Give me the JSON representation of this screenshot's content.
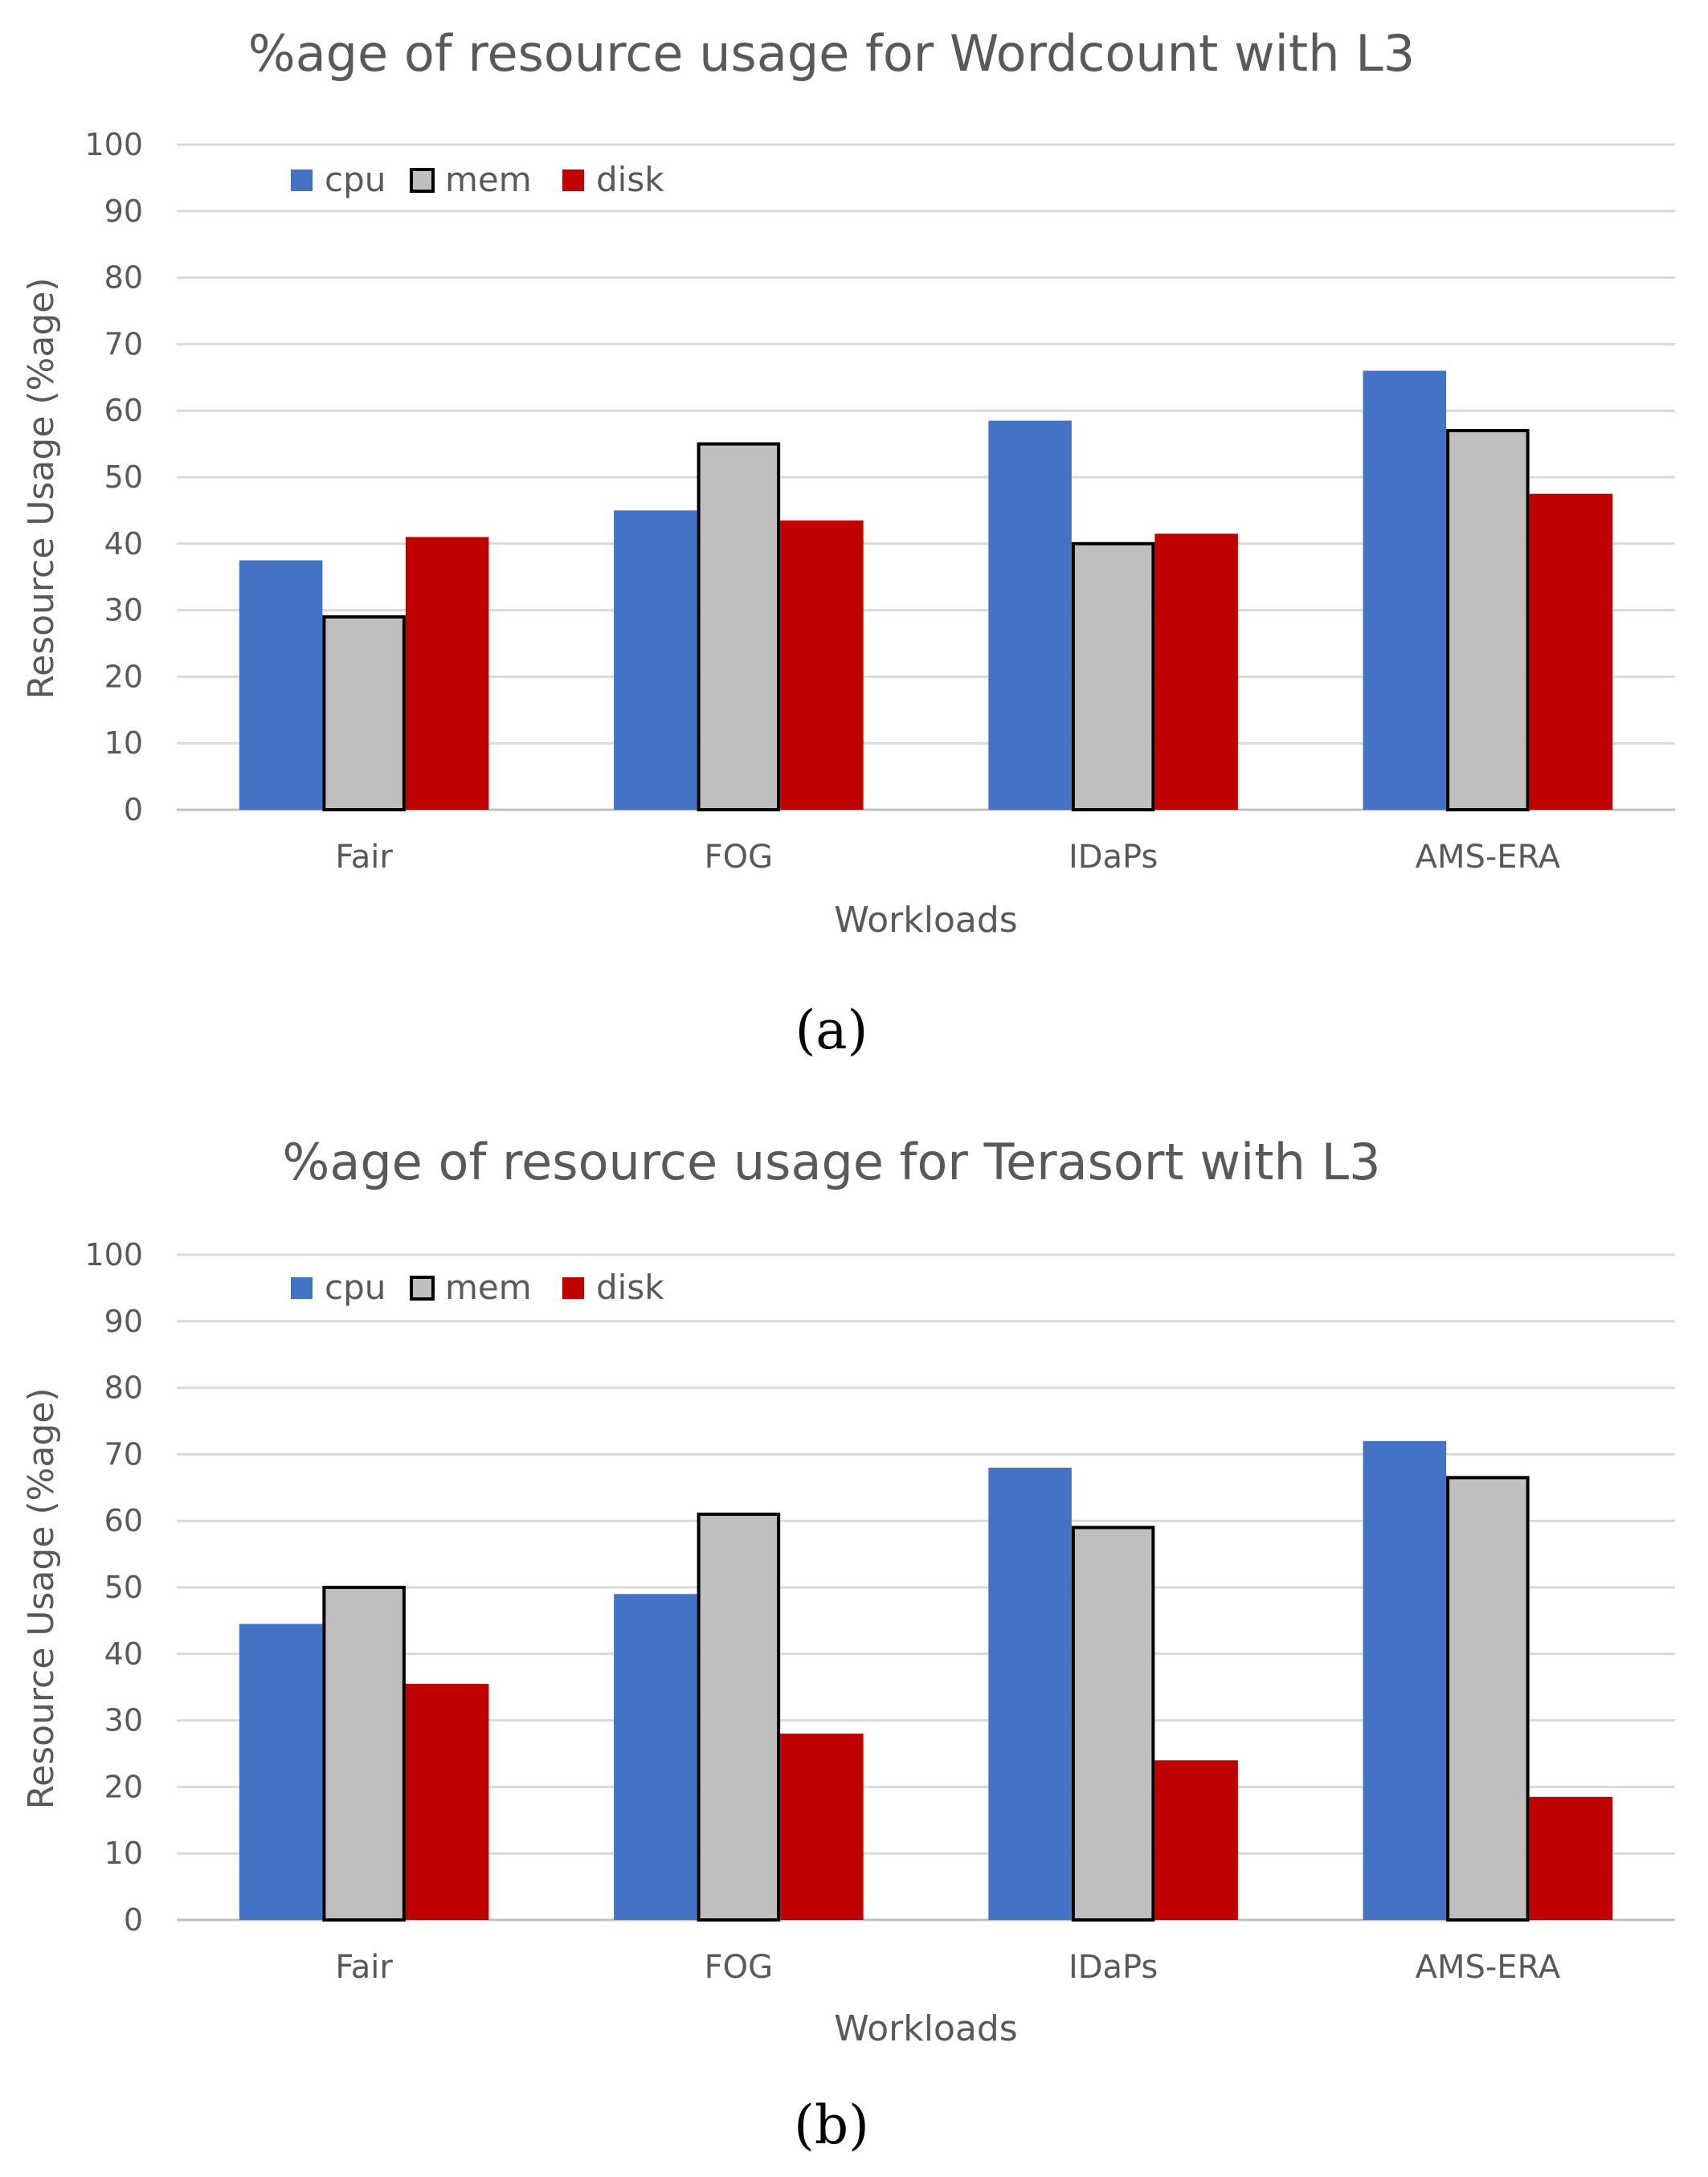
{
  "colors": {
    "cpu": "#4472C4",
    "mem": "#BFBFBF",
    "mem_border": "#000000",
    "disk": "#C00000"
  },
  "chart_data": [
    {
      "type": "bar",
      "panel_label": "(a)",
      "title": "%age of resource usage for Wordcount with  L3",
      "xlabel": "Workloads",
      "ylabel": "Resource Usage (%age)",
      "ylim": [
        0,
        100
      ],
      "yticks": [
        0,
        10,
        20,
        30,
        40,
        50,
        60,
        70,
        80,
        90,
        100
      ],
      "legend_position": "top-left",
      "categories": [
        "Fair",
        "FOG",
        "IDaPs",
        "AMS-ERA"
      ],
      "series": [
        {
          "name": "cpu",
          "values": [
            37.5,
            45,
            58.5,
            66
          ]
        },
        {
          "name": "mem",
          "values": [
            29,
            55,
            40,
            57
          ]
        },
        {
          "name": "disk",
          "values": [
            41,
            43.5,
            41.5,
            47.5
          ]
        }
      ]
    },
    {
      "type": "bar",
      "panel_label": "(b)",
      "title": "%age of resource usage for Terasort with  L3",
      "xlabel": "Workloads",
      "ylabel": "Resource Usage (%age)",
      "ylim": [
        0,
        100
      ],
      "yticks": [
        0,
        10,
        20,
        30,
        40,
        50,
        60,
        70,
        80,
        90,
        100
      ],
      "legend_position": "top-left",
      "categories": [
        "Fair",
        "FOG",
        "IDaPs",
        "AMS-ERA"
      ],
      "series": [
        {
          "name": "cpu",
          "values": [
            44.5,
            49,
            68,
            72
          ]
        },
        {
          "name": "mem",
          "values": [
            50,
            61,
            59,
            66.5
          ]
        },
        {
          "name": "disk",
          "values": [
            35.5,
            28,
            24,
            18.5
          ]
        }
      ]
    }
  ]
}
